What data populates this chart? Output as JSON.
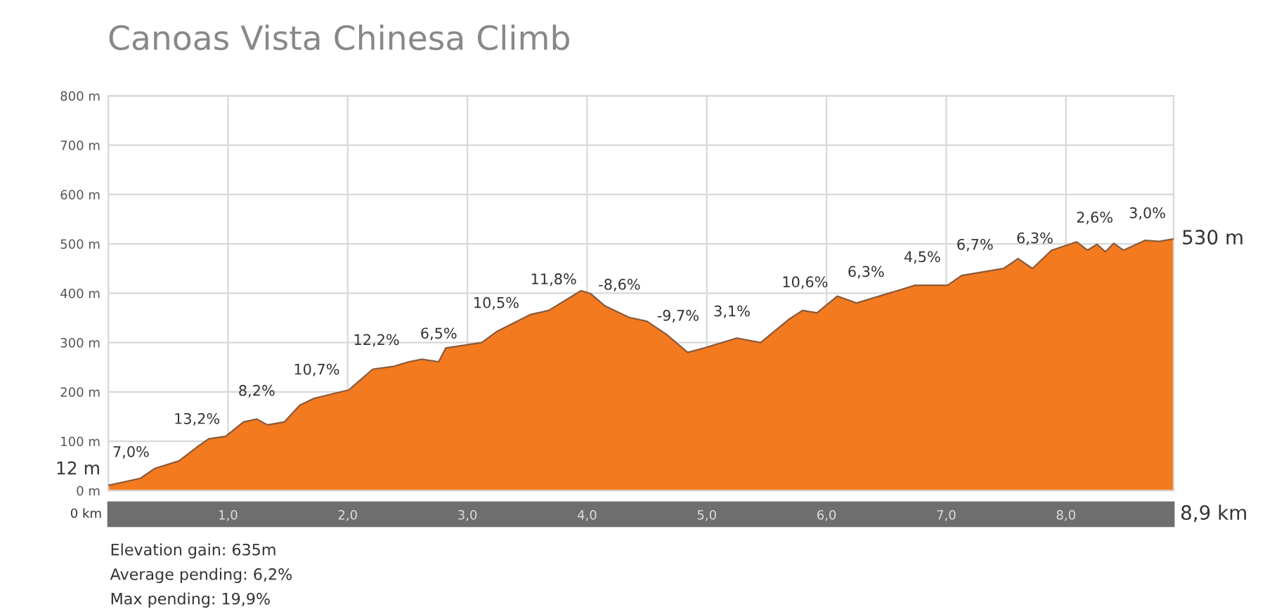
{
  "chart_data": {
    "type": "area",
    "title": "Canoas Vista Chinesa Climb",
    "x": [
      0,
      0.01,
      0.27,
      0.39,
      0.59,
      0.74,
      0.84,
      0.98,
      1.13,
      1.24,
      1.33,
      1.47,
      1.6,
      1.72,
      2.01,
      2.21,
      2.39,
      2.51,
      2.62,
      2.76,
      2.82,
      3.12,
      3.25,
      3.53,
      3.68,
      3.95,
      4.03,
      4.15,
      4.35,
      4.5,
      4.66,
      4.84,
      4.98,
      5.25,
      5.45,
      5.68,
      5.8,
      5.92,
      6.09,
      6.25,
      6.74,
      7.01,
      7.13,
      7.48,
      7.6,
      7.72,
      7.88,
      8.09,
      8.18,
      8.26,
      8.33,
      8.4,
      8.48,
      8.66,
      8.78,
      8.9
    ],
    "values": [
      11,
      11,
      25,
      45,
      60,
      88,
      105,
      110,
      139,
      145,
      133,
      139,
      173,
      187,
      204,
      246,
      252,
      261,
      266,
      261,
      289,
      300,
      323,
      357,
      365,
      405,
      399,
      374,
      351,
      343,
      317,
      280,
      289,
      309,
      300,
      346,
      365,
      360,
      394,
      380,
      416,
      416,
      436,
      450,
      470,
      450,
      487,
      504,
      487,
      499,
      484,
      501,
      487,
      507,
      505,
      510
    ],
    "color": "#f47a20",
    "xlim": [
      0,
      8.9
    ],
    "ylim": [
      0,
      800
    ],
    "xticks": [
      {
        "value": 1,
        "label": "1,0"
      },
      {
        "value": 2,
        "label": "2,0"
      },
      {
        "value": 3,
        "label": "3,0"
      },
      {
        "value": 4,
        "label": "4,0"
      },
      {
        "value": 5,
        "label": "5,0"
      },
      {
        "value": 6,
        "label": "6,0"
      },
      {
        "value": 7,
        "label": "7,0"
      },
      {
        "value": 8,
        "label": "8,0"
      }
    ],
    "yticks": [
      {
        "value": 0,
        "label": "0 m"
      },
      {
        "value": 100,
        "label": "100 m"
      },
      {
        "value": 200,
        "label": "200 m"
      },
      {
        "value": 300,
        "label": "300 m"
      },
      {
        "value": 400,
        "label": "400 m"
      },
      {
        "value": 500,
        "label": "500 m"
      },
      {
        "value": 600,
        "label": "600 m"
      },
      {
        "value": 700,
        "label": "700 m"
      },
      {
        "value": 800,
        "label": "800 m"
      }
    ],
    "grid": true,
    "annotations": [
      {
        "text": "12 m",
        "x": 0,
        "y": 11
      },
      {
        "text": "530 m",
        "x": 8.9,
        "y": 510
      },
      "0 km",
      "8,9 km",
      {
        "text": "7,0%",
        "x": 0.19,
        "y": 21
      },
      {
        "text": "13,2%",
        "x": 0.74,
        "y": 88
      },
      {
        "text": "8,2%",
        "x": 1.24,
        "y": 145
      },
      {
        "text": "10,7%",
        "x": 1.74,
        "y": 188
      },
      {
        "text": "12,2%",
        "x": 2.24,
        "y": 248
      },
      {
        "text": "6,5%",
        "x": 2.76,
        "y": 261
      },
      {
        "text": "10,5%",
        "x": 3.24,
        "y": 323
      },
      {
        "text": "11,8%",
        "x": 3.72,
        "y": 371
      },
      {
        "text": "-8,6%",
        "x": 4.27,
        "y": 360
      },
      {
        "text": "-9,7%",
        "x": 4.76,
        "y": 297
      },
      {
        "text": "3,1%",
        "x": 5.21,
        "y": 306
      },
      {
        "text": "10,6%",
        "x": 5.82,
        "y": 365
      },
      {
        "text": "6,3%",
        "x": 6.33,
        "y": 386
      },
      {
        "text": "4,5%",
        "x": 6.8,
        "y": 416
      },
      {
        "text": "6,7%",
        "x": 7.24,
        "y": 441
      },
      {
        "text": "6,3%",
        "x": 7.74,
        "y": 454
      },
      {
        "text": "2,6%",
        "x": 8.24,
        "y": 496
      },
      {
        "text": "3,0%",
        "x": 8.68,
        "y": 505
      },
      "Elevation gain: 635m",
      "Average pending: 6,2%",
      "Max pending: 19,9%"
    ]
  }
}
